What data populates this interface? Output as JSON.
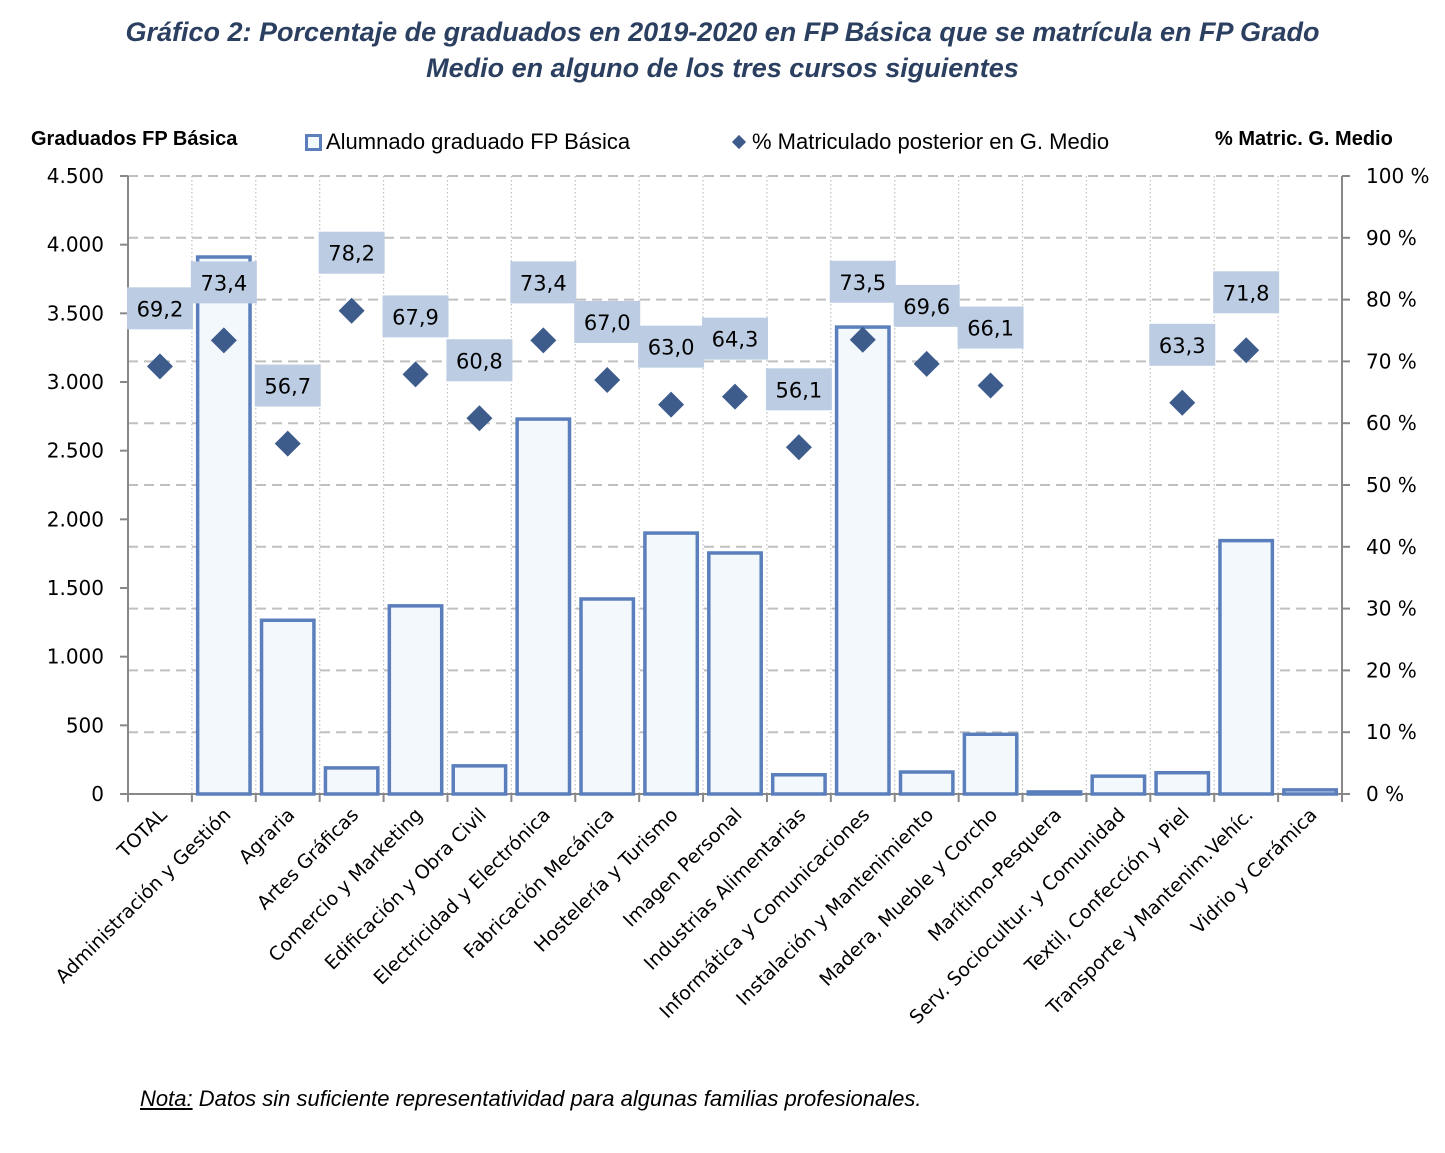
{
  "title_lines": [
    "Gráfico 2: Porcentaje de graduados en 2019-2020 en FP Básica que se matrícula en FP Grado",
    "Medio en alguno de los tres cursos siguientes"
  ],
  "note": {
    "label": "Nota:",
    "text": " Datos sin suficiente representatividad para algunas familias profesionales."
  },
  "colors": {
    "bar_stroke": "#5b7fbd",
    "bar_fill": "#f3f8fc",
    "diamond": "#3d5c8c",
    "label_box": "#bccde3",
    "grid": "#c0c0c0",
    "axis": "#888888",
    "title": "#2b3f60"
  },
  "chart_data": {
    "type": "bar",
    "title": "Gráfico 2: Porcentaje de graduados en 2019-2020 en FP Básica que se matrícula en FP Grado Medio en alguno de los tres cursos siguientes",
    "ylabel": "Graduados FP Básica",
    "y2label": "% Matric. G. Medio",
    "xlabel": "",
    "ylim": [
      0,
      4500
    ],
    "y2lim": [
      0,
      100
    ],
    "yticks": [
      "0",
      "500",
      "1.000",
      "1.500",
      "2.000",
      "2.500",
      "3.000",
      "3.500",
      "4.000",
      "4.500"
    ],
    "y2ticks": [
      "0 %",
      "10 %",
      "20 %",
      "30 %",
      "40 %",
      "50 %",
      "60 %",
      "70 %",
      "80 %",
      "90 %",
      "100 %"
    ],
    "grid": true,
    "legend_position": "top",
    "categories": [
      "TOTAL",
      "Administración y Gestión",
      "Agraria",
      "Artes Gráficas",
      "Comercio y Marketing",
      "Edificación y Obra Civil",
      "Electricidad y Electrónica",
      "Fabricación Mecánica",
      "Hostelería y Turismo",
      "Imagen Personal",
      "Industrias Alimentarias",
      "Informática y Comunicaciones",
      "Instalación y Mantenimiento",
      "Madera, Mueble y Corcho",
      "Marítimo-Pesquera",
      "Serv. Sociocultur. y Comunidad",
      "Textil, Confección y Piel",
      "Transporte y Mantenim.Vehíc.",
      "Vidrio y Cerámica"
    ],
    "series": [
      {
        "name": "Alumnado graduado FP Básica",
        "type": "bar",
        "axis": "left",
        "values": [
          null,
          3910,
          1265,
          190,
          1370,
          205,
          2730,
          1420,
          1900,
          1755,
          140,
          3400,
          160,
          435,
          15,
          130,
          155,
          1845,
          30
        ]
      },
      {
        "name": "% Matriculado posterior en G. Medio",
        "type": "scatter",
        "axis": "right",
        "values": [
          69.2,
          73.4,
          56.7,
          78.2,
          67.9,
          60.8,
          73.4,
          67.0,
          63.0,
          64.3,
          56.1,
          73.5,
          69.6,
          66.1,
          null,
          null,
          63.3,
          71.8,
          null
        ],
        "labels": [
          "69,2",
          "73,4",
          "56,7",
          "78,2",
          "67,9",
          "60,8",
          "73,4",
          "67,0",
          "63,0",
          "64,3",
          "56,1",
          "73,5",
          "69,6",
          "66,1",
          null,
          null,
          "63,3",
          "71,8",
          null
        ]
      }
    ]
  }
}
